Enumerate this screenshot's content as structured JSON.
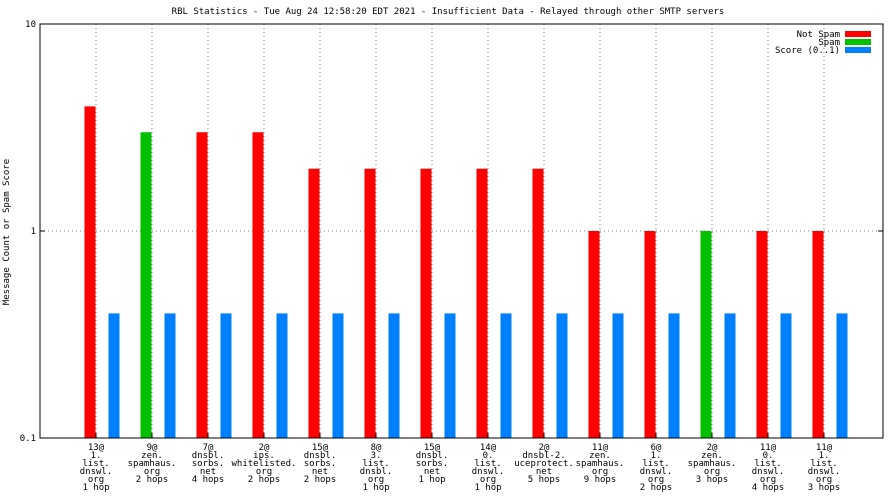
{
  "chart_data": {
    "type": "bar",
    "title": "RBL Statistics - Tue Aug 24 12:58:20 EDT 2021 - Insufficient Data - Relayed through other SMTP servers",
    "ylabel": "Message Count or Spam Score",
    "xlabel": "",
    "yscale": "log",
    "ylim": [
      0.1,
      10
    ],
    "yticks": [
      {
        "value": 0.1,
        "label": "0.1"
      },
      {
        "value": 1,
        "label": "1"
      },
      {
        "value": 10,
        "label": "10"
      }
    ],
    "grid": true,
    "legend_position": "top-right",
    "categories": [
      [
        "13@",
        "1.",
        "list.",
        "dnswl.",
        "org",
        "1 hop"
      ],
      [
        "9@",
        "zen.",
        "spamhaus.",
        "org",
        "2 hops"
      ],
      [
        "7@",
        "dnsbl.",
        "sorbs.",
        "net",
        "4 hops"
      ],
      [
        "2@",
        "ips.",
        "whitelisted.",
        "org",
        "2 hops"
      ],
      [
        "15@",
        "dnsbl.",
        "sorbs.",
        "net",
        "2 hops"
      ],
      [
        "8@",
        "3.",
        "list.",
        "dnsbl.",
        "org",
        "1 hop"
      ],
      [
        "15@",
        "dnsbl.",
        "sorbs.",
        "net",
        "1 hop"
      ],
      [
        "14@",
        "0.",
        "list.",
        "dnswl.",
        "org",
        "1 hop"
      ],
      [
        "2@",
        "dnsbl-2.",
        "uceprotect.",
        "net",
        "5 hops"
      ],
      [
        "11@",
        "zen.",
        "spamhaus.",
        "org",
        "9 hops"
      ],
      [
        "6@",
        "1.",
        "list.",
        "dnswl.",
        "org",
        "2 hops"
      ],
      [
        "2@",
        "zen.",
        "spamhaus.",
        "org",
        "3 hops"
      ],
      [
        "11@",
        "0.",
        "list.",
        "dnswl.",
        "org",
        "4 hops"
      ],
      [
        "11@",
        "1.",
        "list.",
        "dnswl.",
        "org",
        "3 hops"
      ]
    ],
    "series": [
      {
        "name": "Not Spam",
        "color": "#ff0000",
        "values": [
          4,
          0,
          3,
          3,
          2,
          2,
          2,
          2,
          2,
          1,
          1,
          0,
          1,
          1
        ]
      },
      {
        "name": "Spam",
        "color": "#00c000",
        "values": [
          0,
          3,
          0,
          0,
          0,
          0,
          0,
          0,
          0,
          0,
          0,
          1,
          0,
          0
        ]
      },
      {
        "name": "Score (0..1)",
        "color": "#0080ff",
        "values": [
          0.4,
          0.4,
          0.4,
          0.4,
          0.4,
          0.4,
          0.4,
          0.4,
          0.4,
          0.4,
          0.4,
          0.4,
          0.4,
          0.4
        ]
      }
    ]
  }
}
